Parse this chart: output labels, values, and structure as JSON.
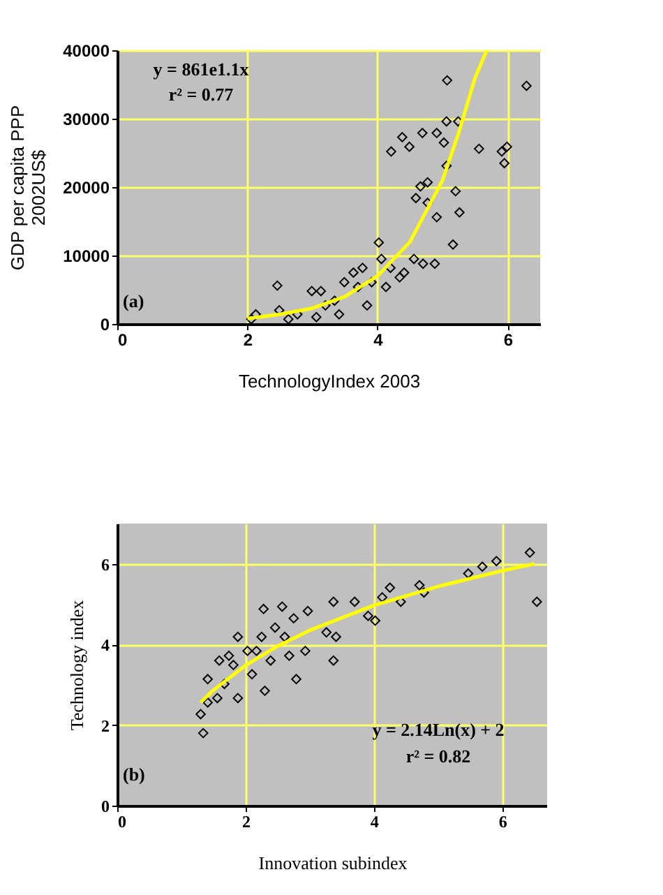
{
  "chart_data": [
    {
      "type": "scatter",
      "xlabel": "TechnologyIndex 2003",
      "ylabel": "GDP per capita PPP\n2002US$",
      "xlim": [
        0,
        6.5
      ],
      "ylim": [
        0,
        40000
      ],
      "xticks": [
        0,
        2,
        4,
        6
      ],
      "yticks": [
        0,
        10000,
        20000,
        30000,
        40000
      ],
      "grid": true,
      "marker": "diamond",
      "annotations": [
        "y = 861e1.1x",
        "r² = 0.77",
        "(a)"
      ],
      "series": [
        {
          "color": "#000000",
          "x": [
            2.46,
            6.29,
            5.07,
            4.21,
            4.38,
            4.49,
            4.69,
            4.91,
            5.02,
            5.24,
            5.06,
            5.56,
            5.91,
            5.99,
            5.95,
            5.06,
            4.77,
            4.66,
            4.59,
            4.77,
            4.91,
            5.2,
            5.26,
            5.16,
            4.88,
            4.7,
            4.56,
            4.41,
            4.2,
            4.02,
            4.06,
            3.91,
            3.77,
            3.63,
            3.49,
            3.7,
            3.84,
            3.34,
            3.2,
            2.99,
            3.13,
            3.06,
            2.77,
            2.49,
            2.13,
            2.06,
            2.63,
            3.41,
            4.13,
            4.34
          ],
          "values": [
            5600,
            34800,
            35600,
            25200,
            27300,
            25900,
            27900,
            27900,
            26500,
            29600,
            29600,
            25600,
            25200,
            25900,
            23500,
            23100,
            20700,
            20100,
            18400,
            17700,
            15600,
            19400,
            16300,
            11600,
            8800,
            8800,
            9500,
            7500,
            8200,
            11900,
            9500,
            6100,
            8200,
            7500,
            6100,
            5400,
            2700,
            3400,
            2700,
            4800,
            4800,
            1000,
            1400,
            2000,
            1400,
            700,
            700,
            1400,
            5400,
            6800
          ]
        },
        {
          "type": "line",
          "marker": "none",
          "color": "#ffff00",
          "x": [
            2,
            2.5,
            3,
            3.5,
            4,
            4.5,
            5,
            5.25,
            5.5,
            5.68
          ],
          "values": [
            800,
            1400,
            2300,
            4000,
            7000,
            12000,
            21000,
            28000,
            36000,
            40000
          ]
        }
      ]
    },
    {
      "type": "scatter",
      "xlabel": "Innovation subindex",
      "ylabel": "Technology index",
      "xlim": [
        0,
        6.7
      ],
      "ylim": [
        0,
        7
      ],
      "xticks": [
        0,
        2,
        4,
        6
      ],
      "yticks": [
        0,
        2,
        4,
        6
      ],
      "grid": true,
      "marker": "diamond",
      "annotations": [
        "y = 2.14Ln(x) + 2",
        "r² = 0.82",
        "(b)"
      ],
      "series": [
        {
          "color": "#000000",
          "x": [
            1.34,
            1.3,
            1.41,
            1.41,
            1.56,
            1.67,
            1.74,
            1.88,
            1.88,
            2.03,
            2.1,
            2.25,
            2.28,
            2.3,
            2.46,
            2.57,
            2.61,
            2.75,
            2.79,
            2.68,
            2.93,
            2.97,
            2.39,
            2.17,
            3.26,
            3.37,
            3.37,
            3.7,
            3.91,
            4.02,
            4.13,
            4.25,
            4.42,
            4.71,
            4.78,
            5.47,
            5.69,
            5.91,
            6.43,
            6.54,
            3.41,
            1.81,
            1.59
          ],
          "values": [
            1.8,
            2.27,
            2.56,
            3.14,
            2.67,
            3.02,
            3.72,
            4.19,
            2.67,
            3.84,
            3.26,
            4.19,
            4.88,
            2.85,
            4.42,
            4.94,
            4.19,
            4.65,
            3.14,
            3.72,
            3.84,
            4.83,
            3.6,
            3.84,
            4.3,
            3.6,
            5.06,
            5.06,
            4.71,
            4.59,
            5.17,
            5.41,
            5.06,
            5.47,
            5.29,
            5.76,
            5.93,
            6.07,
            6.28,
            5.06,
            4.19,
            3.49,
            3.6
          ]
        },
        {
          "type": "line",
          "marker": "none",
          "color": "#ffff00",
          "x": [
            1.3,
            1.5,
            2,
            2.5,
            3,
            4,
            5,
            6,
            6.5
          ],
          "values": [
            2.56,
            2.87,
            3.48,
            3.96,
            4.35,
            4.97,
            5.44,
            5.83,
            6.0
          ]
        }
      ]
    }
  ]
}
